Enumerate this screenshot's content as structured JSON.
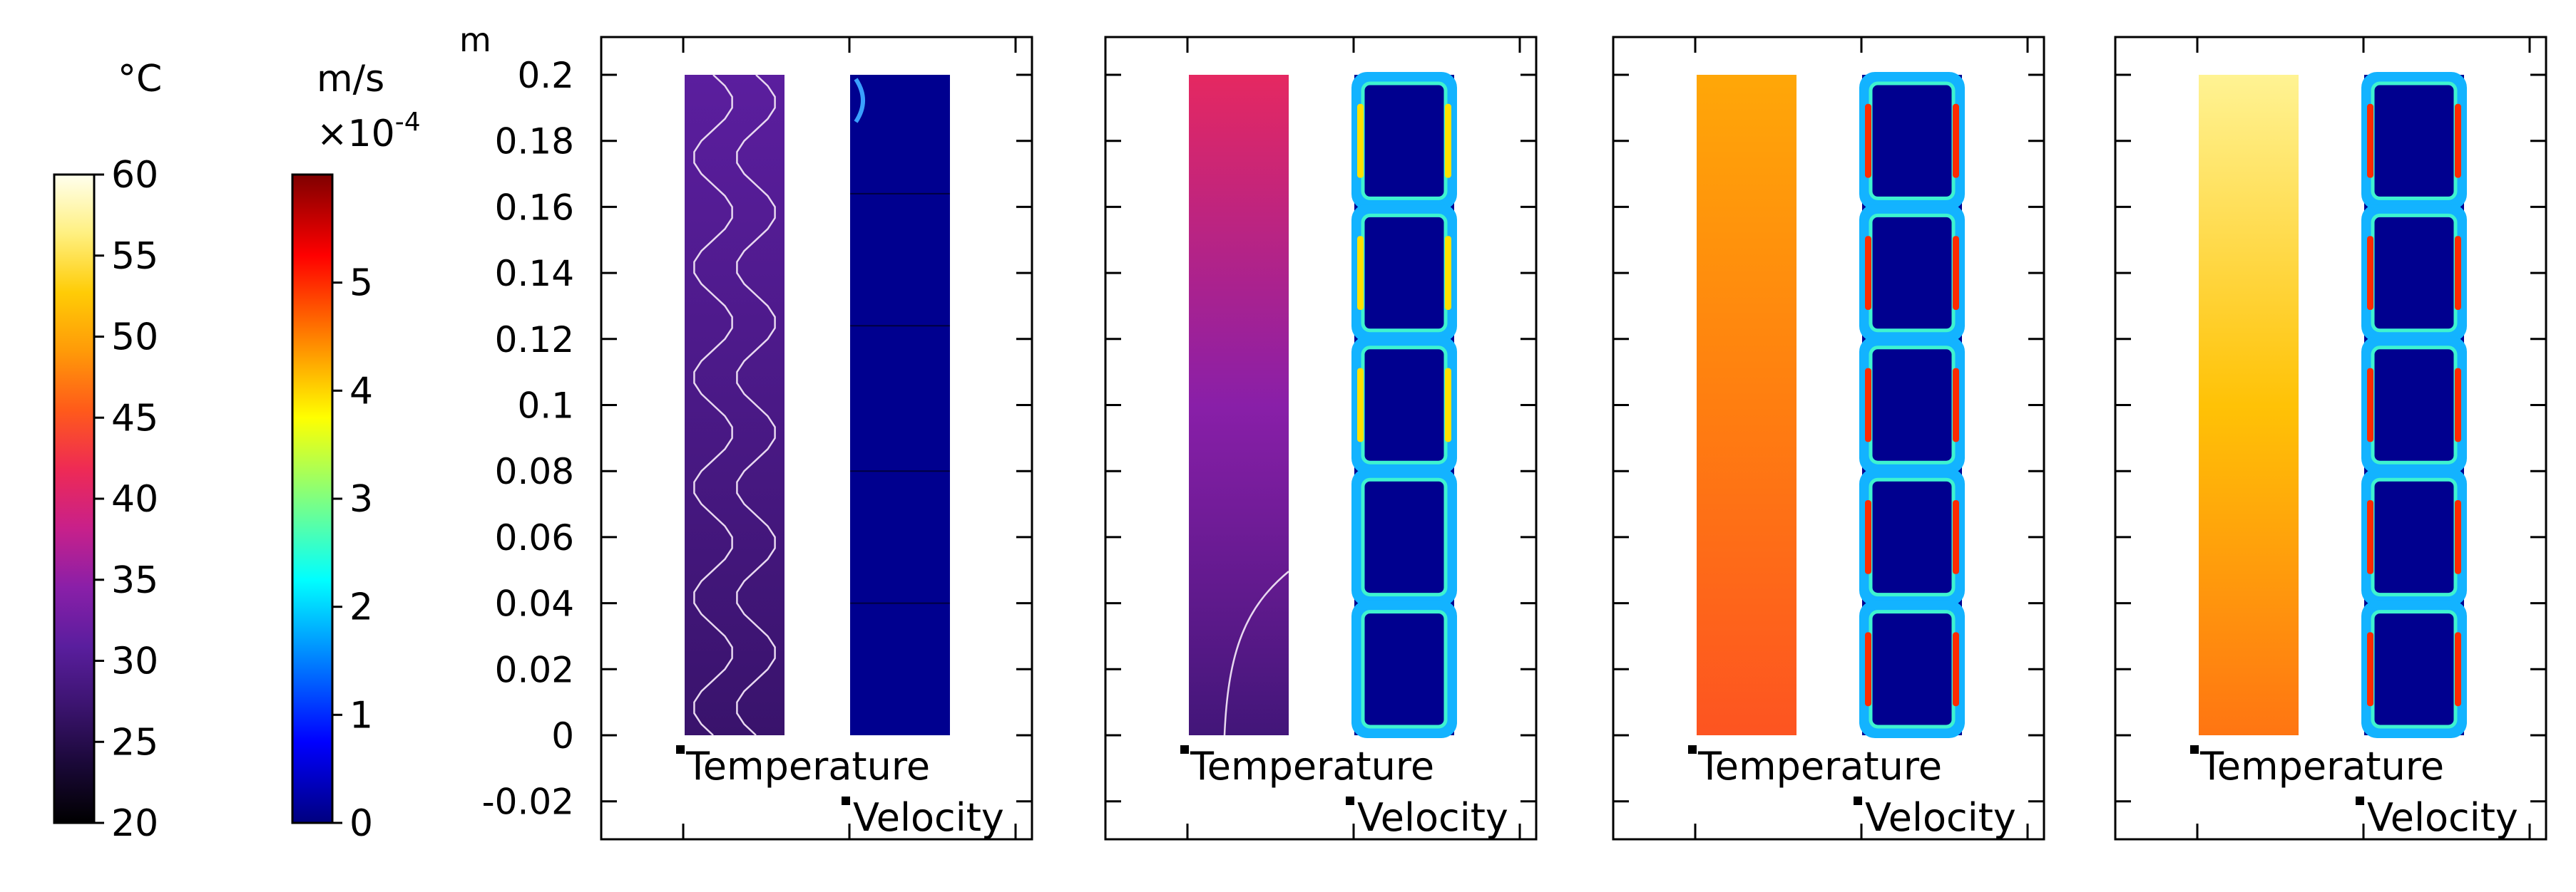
{
  "chart_data": {
    "type": "heatmap",
    "axis_unit": "m",
    "y_ticks": [
      "-0.02",
      "0",
      "0.02",
      "0.04",
      "0.06",
      "0.08",
      "0.1",
      "0.12",
      "0.14",
      "0.16",
      "0.18",
      "0.2"
    ],
    "ylim": [
      -0.03,
      0.21
    ],
    "temperature_colorbar": {
      "unit": "°C",
      "range": [
        20,
        60
      ],
      "ticks": [
        "20",
        "25",
        "30",
        "35",
        "40",
        "45",
        "50",
        "55",
        "60"
      ],
      "colormap": [
        "#000000",
        "#1a0838",
        "#3c1470",
        "#5a1e9e",
        "#8a1fa8",
        "#c8208a",
        "#ee2a55",
        "#ff5a1a",
        "#ff9a08",
        "#ffcc06",
        "#fff080",
        "#ffffee"
      ]
    },
    "velocity_colorbar": {
      "unit": "m/s",
      "scale_base": "×10",
      "scale_exp": "-4",
      "range": [
        0,
        6
      ],
      "ticks": [
        "0",
        "1",
        "2",
        "3",
        "4",
        "5"
      ],
      "colormap": [
        "#00007f",
        "#0000ff",
        "#0080ff",
        "#00ffff",
        "#80ff80",
        "#ffff00",
        "#ff8000",
        "#ff0000",
        "#7f0000"
      ]
    },
    "columns": [
      {
        "temperature_field": {
          "bottom_c": 27,
          "top_c": 31
        },
        "velocity_field": {
          "state": "weak"
        }
      },
      {
        "temperature_field": {
          "bottom_c": 28,
          "top_c": 41
        },
        "velocity_field": {
          "state": "five-cells-forming"
        }
      },
      {
        "temperature_field": {
          "bottom_c": 45,
          "top_c": 50
        },
        "velocity_field": {
          "state": "five-cells"
        }
      },
      {
        "temperature_field": {
          "bottom_c": 47,
          "top_c": 57
        },
        "velocity_field": {
          "state": "five-cells"
        }
      }
    ],
    "legend": {
      "temperature": "Temperature",
      "velocity": "Velocity"
    }
  }
}
